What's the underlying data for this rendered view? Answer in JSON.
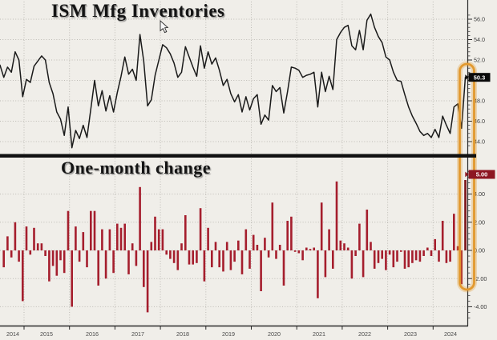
{
  "chart_data": [
    {
      "type": "line",
      "title": "ISM Mfg Inventories",
      "frequency": "monthly",
      "x_start": "2014-06",
      "x_end": "2024-09",
      "ylim": [
        43,
        57
      ],
      "grid": true,
      "line_color": "#1a1a1a",
      "last_value": 50.3,
      "last_value_label": "50.3",
      "yticks": [
        {
          "value": 56,
          "label": "56.0"
        },
        {
          "value": 54,
          "label": "54.0"
        },
        {
          "value": 52,
          "label": "52.0"
        },
        {
          "value": 48,
          "label": "48.0"
        },
        {
          "value": 46,
          "label": "46.0"
        },
        {
          "value": 44,
          "label": "44.0"
        }
      ],
      "gridline_values": [
        56,
        54,
        52,
        50,
        48,
        46,
        44
      ],
      "values": [
        51.5,
        50.3,
        51.3,
        50.8,
        52.8,
        52.0,
        48.4,
        50.1,
        49.8,
        51.4,
        51.9,
        52.4,
        52.0,
        49.8,
        48.7,
        46.9,
        46.2,
        44.6,
        47.4,
        43.4,
        45.1,
        44.3,
        45.6,
        44.4,
        47.2,
        50.0,
        47.5,
        49.0,
        47.0,
        48.5,
        46.9,
        48.8,
        50.4,
        52.3,
        50.6,
        51.1,
        50.0,
        54.5,
        51.9,
        47.5,
        48.1,
        50.5,
        52.0,
        53.5,
        53.2,
        52.6,
        51.7,
        50.3,
        50.8,
        53.3,
        52.3,
        51.3,
        50.4,
        53.4,
        51.2,
        52.8,
        51.6,
        52.2,
        51.0,
        49.5,
        50.1,
        48.7,
        47.9,
        48.6,
        46.9,
        48.4,
        47.1,
        48.2,
        48.6,
        45.7,
        46.6,
        46.1,
        49.5,
        48.9,
        49.3,
        46.8,
        48.9,
        51.3,
        51.2,
        51.0,
        50.3,
        50.5,
        50.6,
        50.8,
        47.4,
        50.8,
        48.9,
        50.4,
        49.1,
        54.0,
        54.7,
        55.2,
        55.4,
        53.4,
        53.0,
        54.9,
        53.0,
        55.9,
        56.5,
        55.2,
        54.3,
        53.7,
        52.3,
        52.0,
        50.8,
        50.0,
        49.9,
        48.6,
        47.4,
        46.5,
        45.8,
        45.0,
        44.6,
        44.8,
        44.4,
        45.2,
        44.4,
        46.5,
        45.6,
        44.8,
        47.4,
        47.7,
        45.3,
        50.3
      ]
    },
    {
      "type": "bar",
      "title": "One-month change",
      "frequency": "monthly",
      "ylim": [
        -5,
        6.5
      ],
      "grid": true,
      "bar_color": "#A51E2D",
      "last_bar_color": "#7C1318",
      "last_value": 5.0,
      "last_value_label": "5.00",
      "yticks": [
        {
          "value": 4,
          "label": "4.00"
        },
        {
          "value": 2,
          "label": "2.00"
        },
        {
          "value": 0,
          "label": "0.00"
        },
        {
          "value": -2,
          "label": "-2.00"
        },
        {
          "value": -4,
          "label": "-4.00"
        }
      ],
      "gridline_values": [
        4,
        2,
        0,
        -2,
        -4
      ],
      "values": [
        -1.2,
        1.0,
        -0.5,
        2.0,
        -0.8,
        -3.6,
        1.7,
        -0.3,
        1.6,
        0.5,
        0.5,
        -0.4,
        -2.2,
        -1.1,
        -1.8,
        -0.7,
        -1.6,
        2.8,
        -4.0,
        1.7,
        -0.8,
        1.3,
        -1.2,
        2.8,
        2.8,
        -2.5,
        1.5,
        -2.0,
        1.5,
        -1.6,
        1.9,
        1.6,
        1.9,
        -1.7,
        0.5,
        -1.1,
        4.5,
        -2.6,
        -4.4,
        0.6,
        2.4,
        1.5,
        1.5,
        -0.3,
        -0.6,
        -0.9,
        -1.4,
        0.5,
        2.5,
        -1.0,
        -1.0,
        -0.9,
        3.0,
        -2.2,
        1.6,
        -1.2,
        0.6,
        -1.2,
        -1.5,
        0.6,
        -1.4,
        -0.8,
        0.7,
        -1.7,
        1.5,
        -1.3,
        1.1,
        0.4,
        -2.9,
        0.9,
        -0.5,
        3.4,
        -0.6,
        0.4,
        -2.5,
        2.1,
        2.4,
        -0.1,
        -0.2,
        -0.7,
        0.2,
        0.1,
        0.2,
        -3.4,
        3.4,
        -1.9,
        1.5,
        -1.3,
        4.9,
        0.7,
        0.5,
        0.2,
        -2.0,
        -0.4,
        1.9,
        -1.9,
        2.9,
        0.6,
        -1.3,
        -0.9,
        -0.6,
        -1.4,
        -0.3,
        -1.2,
        -0.8,
        -0.1,
        -1.3,
        -1.2,
        -0.9,
        -0.7,
        -0.8,
        -0.4,
        0.2,
        -0.4,
        0.8,
        -0.8,
        2.1,
        -0.9,
        -0.8,
        2.6,
        0.3,
        -2.4,
        5.0
      ]
    }
  ],
  "x_axis": {
    "year_labels": [
      "2014",
      "2015",
      "2016",
      "2017",
      "2018",
      "2019",
      "2020",
      "2021",
      "2022",
      "2023",
      "2024"
    ]
  },
  "colors": {
    "background": "#f0eee9",
    "grid": "#bdbbb5",
    "axis": "#2a2a2a",
    "separator": "#111111",
    "tick_label": "#3a3a3a",
    "year_label": "#4a4a4a",
    "badge_top_bg": "#0a0a0a",
    "badge_bottom_bg": "#8D1722",
    "badge_text": "#ffffff",
    "highlight_ring": "#E2992F"
  }
}
